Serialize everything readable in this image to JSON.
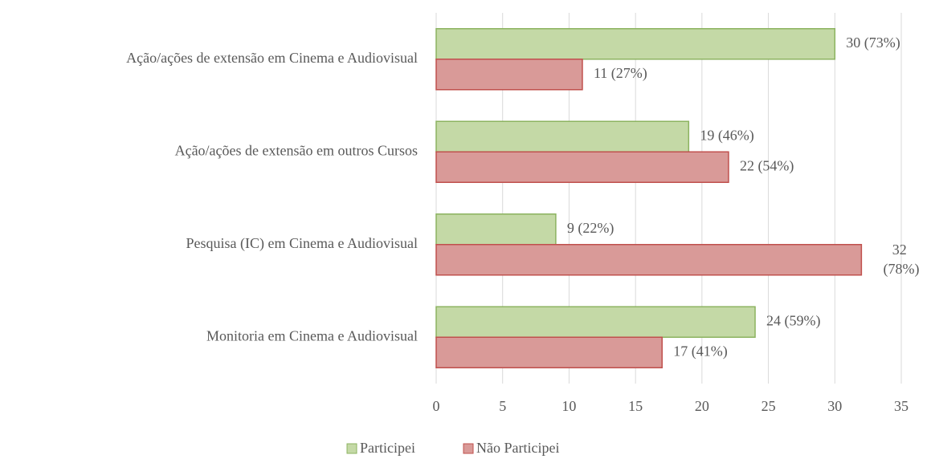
{
  "chart_data": {
    "type": "hbar",
    "categories": [
      "Ação/ações de extensão em Cinema e Audiovisual",
      "Ação/ações de extensão em outros Cursos",
      "Pesquisa (IC) em Cinema e Audiovisual",
      "Monitoria em Cinema e Audiovisual"
    ],
    "series": [
      {
        "name": "Participei",
        "color": "#c4d9a6",
        "stroke": "#8cb360",
        "values": [
          30,
          19,
          9,
          24
        ],
        "value_labels": [
          "30 (73%)",
          "19 (46%)",
          "9 (22%)",
          "24 (59%)"
        ]
      },
      {
        "name": "Não Participei",
        "color": "#d99a98",
        "stroke": "#c0504d",
        "values": [
          11,
          22,
          32,
          17
        ],
        "value_labels": [
          "11 (27%)",
          "22 (54%)",
          "32 (78%)",
          "17 (41%)"
        ]
      }
    ],
    "xlim": [
      0,
      35
    ],
    "xticks": [
      0,
      5,
      10,
      15,
      20,
      25,
      30,
      35
    ],
    "grid": true,
    "legend": "bottom"
  }
}
